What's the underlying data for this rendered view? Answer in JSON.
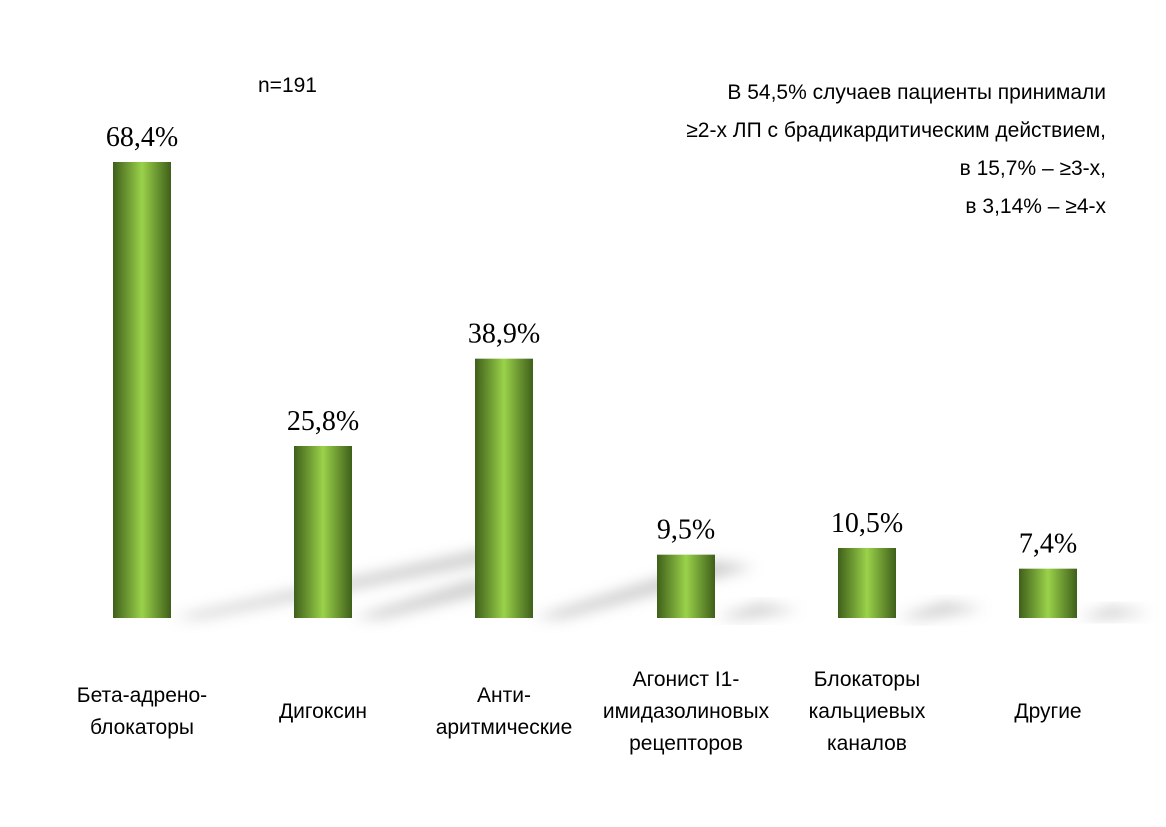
{
  "chart_data": {
    "type": "bar",
    "n_label": "n=191",
    "note_lines": [
      "В 54,5% случаев пациенты принимали",
      "≥2-х ЛП с брадикардитическим действием,",
      "в 15,7% – ≥3-х,",
      "в 3,14% – ≥4-х"
    ],
    "categories": [
      [
        "Бета-адрено-",
        "блокаторы"
      ],
      [
        "Дигоксин"
      ],
      [
        "Анти-",
        "аритмические"
      ],
      [
        "Агонист I1-",
        "имидазолиновых",
        "рецепторов"
      ],
      [
        "Блокаторы",
        "кальциевых",
        "каналов"
      ],
      [
        "Другие"
      ]
    ],
    "values": [
      68.4,
      25.8,
      38.9,
      9.5,
      10.5,
      7.4
    ],
    "value_labels": [
      "68,4%",
      "25,8%",
      "38,9%",
      "9,5%",
      "10,5%",
      "7,4%"
    ],
    "ylim": [
      0,
      75
    ],
    "bar_color_dark": "#3f5f1a",
    "bar_color_light": "#9ad24a",
    "grid": false
  }
}
